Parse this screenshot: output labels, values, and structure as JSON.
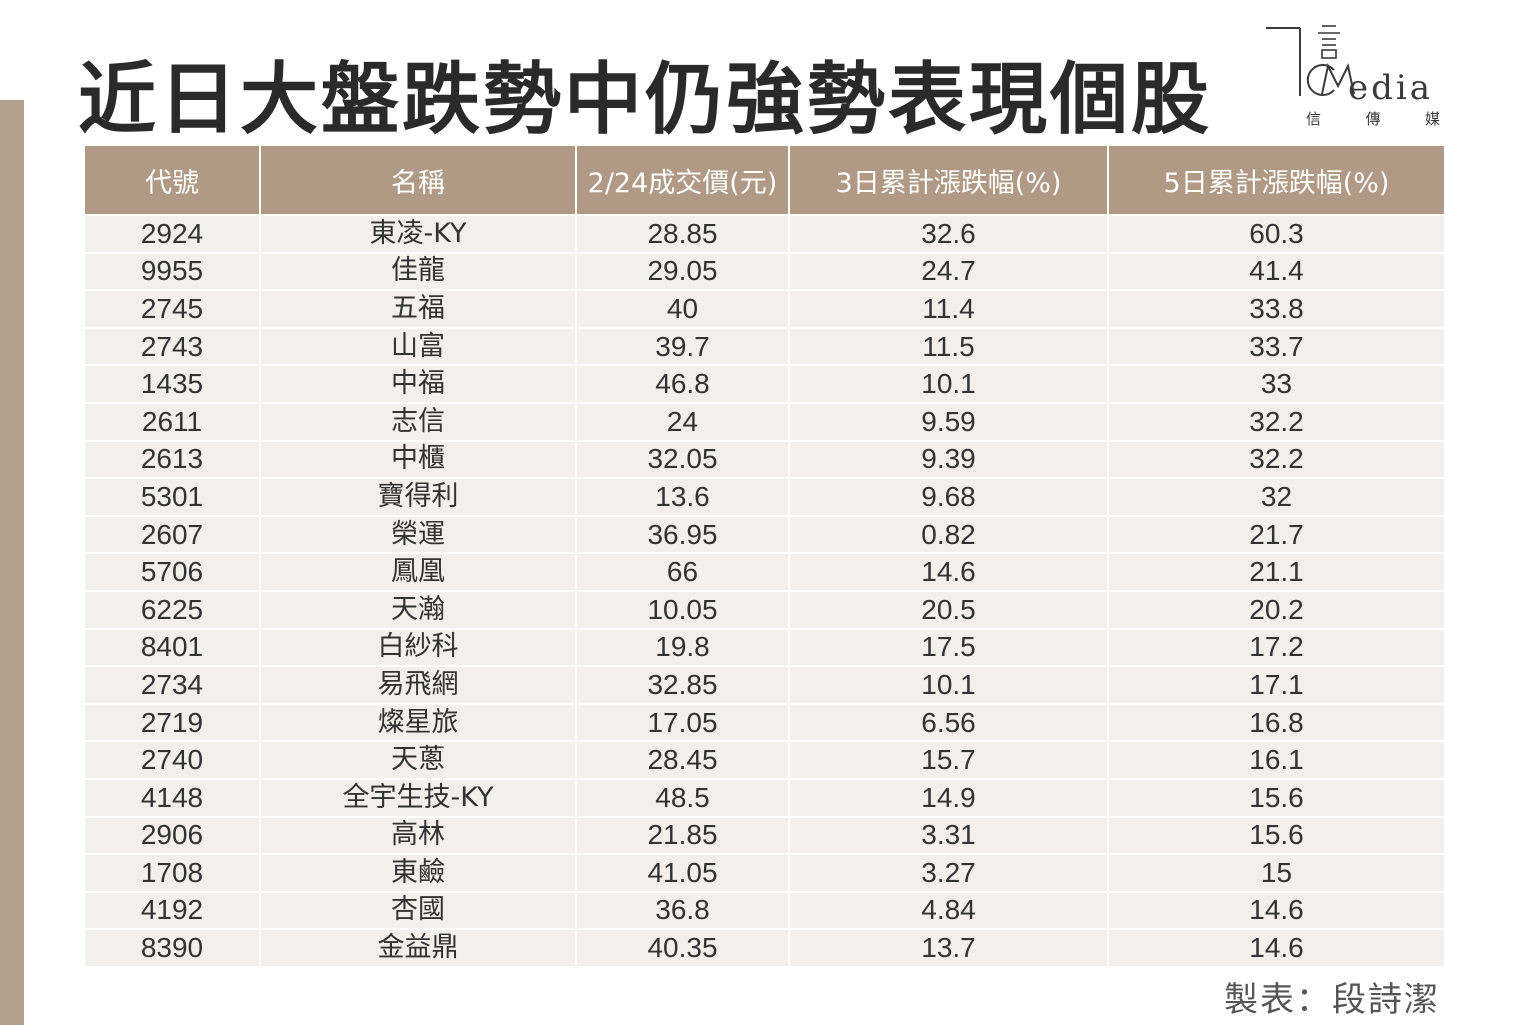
{
  "title": "近日大盤跌勢中仍強勢表現個股",
  "logo": {
    "word": "edia",
    "sub": [
      "信",
      "傳",
      "媒"
    ]
  },
  "credit": "製表：段詩潔",
  "colors": {
    "accent": "#b09a86",
    "row_bg": "#f3efeb",
    "side_bar": "#b5a08d"
  },
  "chart_data": {
    "type": "table",
    "title": "近日大盤跌勢中仍強勢表現個股",
    "columns": [
      "代號",
      "名稱",
      "2/24成交價(元)",
      "3日累計漲跌幅(%)",
      "5日累計漲跌幅(%)"
    ],
    "rows": [
      [
        "2924",
        "東凌-KY",
        "28.85",
        "32.6",
        "60.3"
      ],
      [
        "9955",
        "佳龍",
        "29.05",
        "24.7",
        "41.4"
      ],
      [
        "2745",
        "五福",
        "40",
        "11.4",
        "33.8"
      ],
      [
        "2743",
        "山富",
        "39.7",
        "11.5",
        "33.7"
      ],
      [
        "1435",
        "中福",
        "46.8",
        "10.1",
        "33"
      ],
      [
        "2611",
        "志信",
        "24",
        "9.59",
        "32.2"
      ],
      [
        "2613",
        "中櫃",
        "32.05",
        "9.39",
        "32.2"
      ],
      [
        "5301",
        "寶得利",
        "13.6",
        "9.68",
        "32"
      ],
      [
        "2607",
        "榮運",
        "36.95",
        "0.82",
        "21.7"
      ],
      [
        "5706",
        "鳳凰",
        "66",
        "14.6",
        "21.1"
      ],
      [
        "6225",
        "天瀚",
        "10.05",
        "20.5",
        "20.2"
      ],
      [
        "8401",
        "白紗科",
        "19.8",
        "17.5",
        "17.2"
      ],
      [
        "2734",
        "易飛網",
        "32.85",
        "10.1",
        "17.1"
      ],
      [
        "2719",
        "燦星旅",
        "17.05",
        "6.56",
        "16.8"
      ],
      [
        "2740",
        "天蔥",
        "28.45",
        "15.7",
        "16.1"
      ],
      [
        "4148",
        "全宇生技-KY",
        "48.5",
        "14.9",
        "15.6"
      ],
      [
        "2906",
        "高林",
        "21.85",
        "3.31",
        "15.6"
      ],
      [
        "1708",
        "東鹼",
        "41.05",
        "3.27",
        "15"
      ],
      [
        "4192",
        "杏國",
        "36.8",
        "4.84",
        "14.6"
      ],
      [
        "8390",
        "金益鼎",
        "40.35",
        "13.7",
        "14.6"
      ]
    ]
  }
}
